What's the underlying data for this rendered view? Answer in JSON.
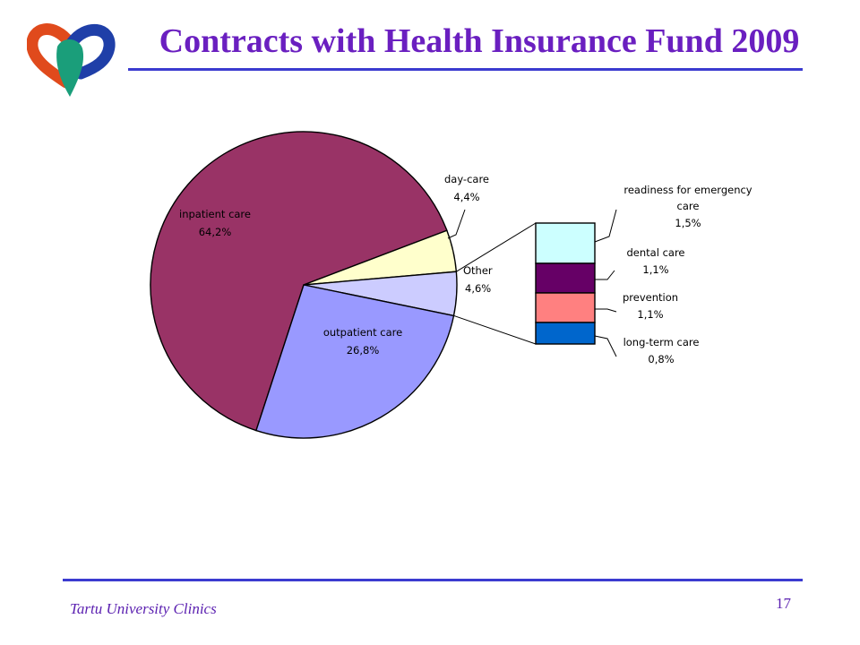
{
  "slide": {
    "title": "Contracts with Health Insurance Fund 2009",
    "footer": "Tartu University Clinics",
    "page_number": "17"
  },
  "colors": {
    "title": "#6a1fc0",
    "rule": "#3b3bd0",
    "logo_red": "#e04a1c",
    "logo_green": "#1a9e7a",
    "logo_blue": "#1f3fa8"
  },
  "chart_data": {
    "type": "pie",
    "title": "",
    "unit": "%",
    "slices": [
      {
        "label": "inpatient care",
        "value_label": "64,2%",
        "value": 64.2,
        "color": "#993366"
      },
      {
        "label": "day-care",
        "value_label": "4,4%",
        "value": 4.4,
        "color": "#ffffcc"
      },
      {
        "label": "Other",
        "value_label": "4,6%",
        "value": 4.6,
        "color": "#ccccff"
      },
      {
        "label": "outpatient care",
        "value_label": "26,8%",
        "value": 26.8,
        "color": "#9999ff"
      }
    ],
    "other_breakdown": [
      {
        "label_lines": [
          "readiness for emergency",
          "care"
        ],
        "value_label": "1,5%",
        "value": 1.5,
        "color": "#ccffff"
      },
      {
        "label_lines": [
          "dental care"
        ],
        "value_label": "1,1%",
        "value": 1.1,
        "color": "#660066"
      },
      {
        "label_lines": [
          "prevention"
        ],
        "value_label": "1,1%",
        "value": 1.1,
        "color": "#ff8080"
      },
      {
        "label_lines": [
          "long-term care"
        ],
        "value_label": "0,8%",
        "value": 0.8,
        "color": "#0066cc"
      }
    ]
  }
}
